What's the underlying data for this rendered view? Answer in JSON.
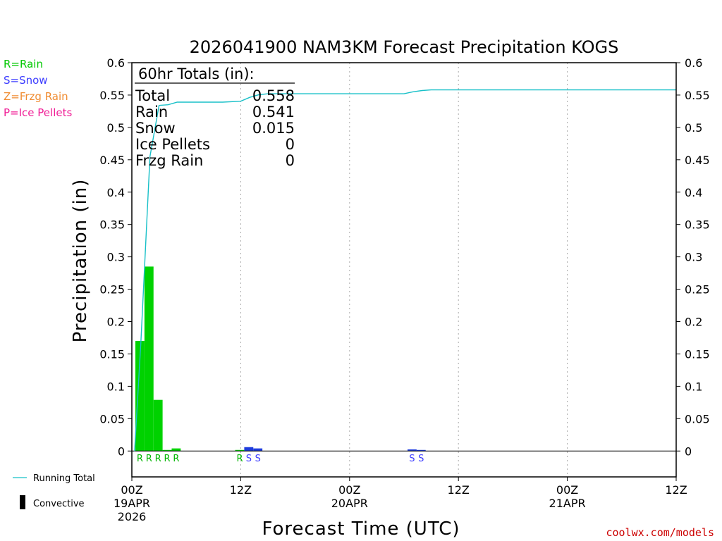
{
  "chart_data": {
    "type": "bar",
    "title": "2026041900 NAM3KM Forecast Precipitation KOGS",
    "xlabel": "Forecast Time (UTC)",
    "ylabel": "Precipitation (in)",
    "ylim": [
      -0.04,
      0.6
    ],
    "xlim_hours": [
      0,
      60
    ],
    "yticks": [
      0,
      0.05,
      0.1,
      0.15,
      0.2,
      0.25,
      0.3,
      0.35,
      0.4,
      0.45,
      0.5,
      0.55,
      0.6
    ],
    "ytick_labels": [
      "0",
      "0.05",
      "0.1",
      "0.15",
      "0.2",
      "0.25",
      "0.3",
      "0.35",
      "0.4",
      "0.45",
      "0.5",
      "0.55",
      "0.6"
    ],
    "xticks": [
      {
        "hour": 0,
        "label": "00Z",
        "sub1": "19APR",
        "sub2": "2026"
      },
      {
        "hour": 12,
        "label": "12Z",
        "sub1": "",
        "sub2": ""
      },
      {
        "hour": 24,
        "label": "00Z",
        "sub1": "20APR",
        "sub2": ""
      },
      {
        "hour": 36,
        "label": "12Z",
        "sub1": "",
        "sub2": ""
      },
      {
        "hour": 48,
        "label": "00Z",
        "sub1": "21APR",
        "sub2": ""
      },
      {
        "hour": 60,
        "label": "12Z",
        "sub1": "",
        "sub2": ""
      }
    ],
    "grid": "vertical-dotted",
    "series": [
      {
        "name": "Hourly Precipitation",
        "bars": [
          {
            "hour": 1,
            "value": 0.17,
            "ptype": "R"
          },
          {
            "hour": 2,
            "value": 0.285,
            "ptype": "R"
          },
          {
            "hour": 3,
            "value": 0.079,
            "ptype": "R"
          },
          {
            "hour": 4,
            "value": 0.0005,
            "ptype": "R"
          },
          {
            "hour": 5,
            "value": 0.004,
            "ptype": "R"
          },
          {
            "hour": 12,
            "value": 0.0015,
            "ptype": "R"
          },
          {
            "hour": 13,
            "value": 0.006,
            "ptype": "S"
          },
          {
            "hour": 14,
            "value": 0.004,
            "ptype": "S"
          },
          {
            "hour": 31,
            "value": 0.0025,
            "ptype": "S"
          },
          {
            "hour": 32,
            "value": 0.0005,
            "ptype": "S"
          }
        ]
      },
      {
        "name": "Running Total",
        "points": [
          [
            0.3,
            0.0
          ],
          [
            1,
            0.17
          ],
          [
            2,
            0.455
          ],
          [
            3,
            0.534
          ],
          [
            4,
            0.535
          ],
          [
            5,
            0.539
          ],
          [
            6,
            0.539
          ],
          [
            10,
            0.539
          ],
          [
            12,
            0.5405
          ],
          [
            13,
            0.5465
          ],
          [
            14,
            0.5505
          ],
          [
            15,
            0.552
          ],
          [
            16,
            0.552
          ],
          [
            30,
            0.552
          ],
          [
            31,
            0.555
          ],
          [
            32,
            0.557
          ],
          [
            33,
            0.558
          ],
          [
            60,
            0.558
          ]
        ]
      }
    ],
    "totals": {
      "header": "60hr Totals (in):",
      "rows": [
        {
          "label": "Total",
          "value": "0.558"
        },
        {
          "label": "Rain",
          "value": "0.541"
        },
        {
          "label": "Snow",
          "value": "0.015"
        },
        {
          "label": "Ice Pellets",
          "value": "0"
        },
        {
          "label": "Frzg Rain",
          "value": "0"
        }
      ]
    },
    "ptype_legend": [
      {
        "text": "R=Rain",
        "color": "#00c800"
      },
      {
        "text": "S=Snow",
        "color": "#3c3cff"
      },
      {
        "text": "Z=Frzg Rain",
        "color": "#f08c32"
      },
      {
        "text": "P=Ice Pellets",
        "color": "#f01e96"
      }
    ],
    "bottom_legend": {
      "running_total": "Running Total",
      "convective": "Convective"
    },
    "colors": {
      "rain": "#00d200",
      "snow": "#1e3cdc",
      "running_total": "#18c0c8",
      "rain_text": "#00b400",
      "snow_text": "#3c3cff"
    },
    "credit": "coolwx.com/models"
  }
}
